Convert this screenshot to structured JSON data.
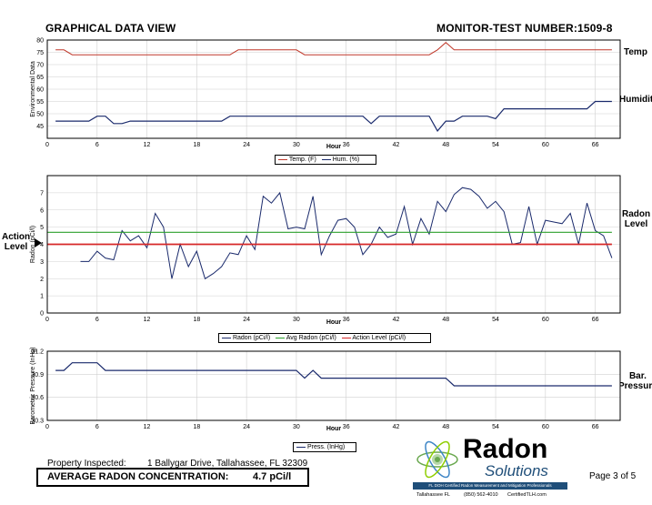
{
  "header": {
    "title": "GRAPHICAL DATA VIEW",
    "monitor_label": "MONITOR-TEST NUMBER:",
    "monitor_number": "1509-8"
  },
  "side_labels": {
    "temp": "Temp",
    "humidity": "Humidity",
    "radon": "Radon\nLevel",
    "action": "Action\nLevel",
    "pressure": "Bar.\nPressure"
  },
  "colors": {
    "temp": "#c0392b",
    "humidity": "#1a2a6c",
    "radon": "#1a2a6c",
    "avg": "#2ca02c",
    "action": "#d62728",
    "pressure": "#1a2a6c"
  },
  "footer": {
    "property_label": "Property Inspected:",
    "property_value": "1 Ballygar Drive, Tallahassee, FL 32309",
    "avg_label": "AVERAGE RADON CONCENTRATION:",
    "avg_value": "4.7 pCi/l",
    "page": "Page 3 of 5",
    "logo_word1": "Radon",
    "logo_word2": "Solutions",
    "logo_tagline": "FL DOH Certified Radon Measurement and Mitigation Professionals",
    "logo_city": "Tallahassee FL",
    "logo_phone": "(850) 562-4010",
    "logo_site": "CertifiedTLH.com"
  },
  "chart_data": [
    {
      "type": "line",
      "ylabel": "Environmental Data",
      "xlabel": "Hour",
      "xlim": [
        0,
        69
      ],
      "ylim": [
        40,
        80
      ],
      "xticks": [
        0,
        6,
        12,
        18,
        24,
        30,
        36,
        42,
        48,
        54,
        60,
        66
      ],
      "yticks": [
        45,
        50,
        55,
        60,
        65,
        70,
        75,
        80
      ],
      "series": [
        {
          "name": "Temp. (F)",
          "x": [
            1,
            2,
            3,
            22,
            23,
            30,
            31,
            46,
            47,
            48,
            49,
            68
          ],
          "y": [
            76,
            76,
            74,
            74,
            76,
            76,
            74,
            74,
            76,
            79,
            76,
            76
          ]
        },
        {
          "name": "Hum. (%)",
          "x": [
            1,
            5,
            6,
            7,
            8,
            9,
            10,
            11,
            21,
            22,
            38,
            39,
            40,
            46,
            47,
            48,
            49,
            50,
            53,
            54,
            55,
            65,
            66,
            68
          ],
          "y": [
            47,
            47,
            49,
            49,
            46,
            46,
            47,
            47,
            47,
            49,
            49,
            46,
            49,
            49,
            43,
            47,
            47,
            49,
            49,
            48,
            52,
            52,
            55,
            55
          ]
        }
      ]
    },
    {
      "type": "line",
      "ylabel": "Radon (pCi/l)",
      "xlabel": "Hour",
      "xlim": [
        0,
        69
      ],
      "ylim": [
        0,
        8
      ],
      "xticks": [
        0,
        6,
        12,
        18,
        24,
        30,
        36,
        42,
        48,
        54,
        60,
        66
      ],
      "yticks": [
        0,
        1,
        2,
        3,
        4,
        5,
        6,
        7
      ],
      "series": [
        {
          "name": "Radon (pCi/l)",
          "x": [
            4,
            5,
            6,
            7,
            8,
            9,
            10,
            11,
            12,
            13,
            14,
            15,
            16,
            17,
            18,
            19,
            20,
            21,
            22,
            23,
            24,
            25,
            26,
            27,
            28,
            29,
            30,
            31,
            32,
            33,
            34,
            35,
            36,
            37,
            38,
            39,
            40,
            41,
            42,
            43,
            44,
            45,
            46,
            47,
            48,
            49,
            50,
            51,
            52,
            53,
            54,
            55,
            56,
            57,
            58,
            59,
            60,
            61,
            62,
            63,
            64,
            65,
            66,
            67,
            68
          ],
          "y": [
            3.0,
            3.0,
            3.6,
            3.2,
            3.1,
            4.8,
            4.2,
            4.5,
            3.8,
            5.8,
            5.0,
            2.0,
            4.0,
            2.7,
            3.6,
            2.0,
            2.3,
            2.7,
            3.5,
            3.4,
            4.5,
            3.7,
            6.8,
            6.4,
            7.0,
            4.9,
            5.0,
            4.9,
            6.8,
            3.4,
            4.5,
            5.4,
            5.5,
            5.0,
            3.4,
            4.0,
            5.0,
            4.4,
            4.6,
            6.2,
            4.0,
            5.5,
            4.6,
            6.5,
            5.9,
            6.9,
            7.3,
            7.2,
            6.8,
            6.1,
            6.5,
            5.9,
            4.0,
            4.1,
            6.2,
            4.0,
            5.4,
            5.3,
            5.2,
            5.8,
            4.0,
            6.4,
            4.8,
            4.5,
            3.2
          ]
        },
        {
          "name": "Avg Radon (pCi/l)",
          "x": [
            0,
            68
          ],
          "y": [
            4.7,
            4.7
          ]
        },
        {
          "name": "Action Level (pCi/l)",
          "x": [
            0,
            68
          ],
          "y": [
            4.0,
            4.0
          ]
        }
      ]
    },
    {
      "type": "line",
      "ylabel": "Barometric Pressure (InHg)",
      "xlabel": "Hour",
      "xlim": [
        0,
        69
      ],
      "ylim": [
        30.3,
        31.2
      ],
      "xticks": [
        0,
        6,
        12,
        18,
        24,
        30,
        36,
        42,
        48,
        54,
        60,
        66
      ],
      "yticks": [
        30.3,
        30.6,
        30.9,
        31.2
      ],
      "ytick_labels": [
        "30.3",
        "30.6",
        "30.9",
        "31.2"
      ],
      "series": [
        {
          "name": "Press. (InHg)",
          "x": [
            1,
            2,
            3,
            6,
            7,
            30,
            31,
            32,
            33,
            48,
            49,
            68
          ],
          "y": [
            30.95,
            30.95,
            31.05,
            31.05,
            30.95,
            30.95,
            30.85,
            30.95,
            30.85,
            30.85,
            30.75,
            30.75
          ]
        }
      ]
    }
  ]
}
